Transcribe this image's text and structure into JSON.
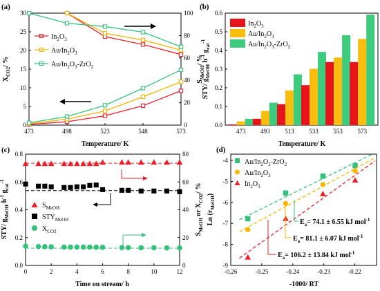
{
  "chart_data": [
    {
      "panel": "(a)",
      "type": "line",
      "xlabel": "Temperature/ K",
      "ylabel_left": "X_CO2/ %",
      "ylabel_right": "S_MeOH/ %",
      "x": [
        473,
        498,
        523,
        548,
        573
      ],
      "xlim": [
        473,
        573
      ],
      "ylim_left": [
        0,
        30
      ],
      "ylim_right": [
        0,
        100
      ],
      "yticks_left": [
        "0",
        "5",
        "10",
        "15",
        "20",
        "25",
        "30"
      ],
      "yticks_right": [
        "0",
        "20",
        "40",
        "60",
        "80",
        "100"
      ],
      "legend": "top-left",
      "series": [
        {
          "name": "In2O3",
          "color": "#e8202a",
          "marker": "square",
          "axis": "left",
          "quantity": "X_CO2",
          "values": [
            0.2,
            0.9,
            2.5,
            5.2,
            9.2
          ]
        },
        {
          "name": "Au/In2O3",
          "color": "#f7b500",
          "marker": "square",
          "axis": "left",
          "quantity": "X_CO2",
          "values": [
            0.4,
            1.6,
            3.8,
            7.6,
            11.6
          ]
        },
        {
          "name": "Au/In2O3-ZrO2",
          "color": "#34c17a",
          "marker": "square",
          "axis": "left",
          "quantity": "X_CO2",
          "values": [
            0.6,
            2.3,
            5.3,
            9.9,
            14.8
          ]
        },
        {
          "name": "In2O3",
          "color": "#e8202a",
          "marker": "square",
          "axis": "right",
          "quantity": "S_MeOH",
          "values": [
            null,
            100,
            79,
            72,
            63
          ]
        },
        {
          "name": "Au/In2O3",
          "color": "#f7b500",
          "marker": "square",
          "axis": "right",
          "quantity": "S_MeOH",
          "values": [
            null,
            100,
            82,
            76,
            67
          ]
        },
        {
          "name": "Au/In2O3-ZrO2",
          "color": "#34c17a",
          "marker": "square",
          "axis": "right",
          "quantity": "S_MeOH",
          "values": [
            100,
            91,
            88,
            83,
            70
          ]
        }
      ]
    },
    {
      "panel": "(b)",
      "type": "bar",
      "xlabel": "Temperature/ K",
      "ylabel": "STY/ g_MeOH h^-1 g_cat^-1",
      "categories": [
        "473",
        "493",
        "513",
        "533",
        "553",
        "573"
      ],
      "ylim": [
        0,
        0.6
      ],
      "yticks": [
        "0.0",
        "0.1",
        "0.2",
        "0.3",
        "0.4",
        "0.5",
        "0.6"
      ],
      "legend": "top-left",
      "series": [
        {
          "name": "In2O3",
          "color": "#e8141c",
          "values": [
            0.004,
            0.034,
            0.112,
            0.214,
            0.338,
            0.338
          ]
        },
        {
          "name": "Au/In2O3",
          "color": "#f9bd0f",
          "values": [
            0.02,
            0.076,
            0.186,
            0.302,
            0.362,
            0.462
          ]
        },
        {
          "name": "Au/In2O3-ZrO2",
          "color": "#3dcc7d",
          "values": [
            0.034,
            0.12,
            0.272,
            0.392,
            0.482,
            0.592
          ]
        }
      ]
    },
    {
      "panel": "(c)",
      "type": "scatter",
      "xlabel": "Time on stream/ h",
      "ylabel_left": "STY/ g_MeOH h^-1 g_cat^-1",
      "ylabel_right": "S_MeOH or X_CO2/ %",
      "xlim": [
        0,
        12
      ],
      "ylim_left": [
        0,
        0.8
      ],
      "ylim_right": [
        0,
        80
      ],
      "xticks": [
        "0",
        "2",
        "4",
        "6",
        "8",
        "10",
        "12"
      ],
      "yticks_left": [
        "0.0",
        "0.2",
        "0.4",
        "0.6",
        "0.8"
      ],
      "yticks_right": [
        "0",
        "20",
        "40",
        "60",
        "80"
      ],
      "legend": "left",
      "series": [
        {
          "name": "S_MeOH",
          "color": "#e8202a",
          "marker": "triangle",
          "axis": "right",
          "x": [
            0,
            1,
            1.5,
            2,
            3,
            3.5,
            4,
            4.5,
            5,
            5.5,
            6,
            7.5,
            8,
            9,
            10,
            11,
            12
          ],
          "y": [
            73,
            73,
            73,
            73,
            73,
            73,
            73,
            73,
            73,
            73,
            74,
            74,
            74,
            74,
            74,
            74,
            74
          ]
        },
        {
          "name": "STY_MeOH",
          "color": "#000000",
          "marker": "square",
          "axis": "left",
          "x": [
            0,
            1,
            1.5,
            2,
            3,
            3.5,
            4,
            4.5,
            5,
            5.5,
            6,
            7.5,
            8,
            9,
            10,
            11,
            12
          ],
          "y": [
            0.585,
            0.57,
            0.57,
            0.565,
            0.56,
            0.56,
            0.565,
            0.565,
            0.575,
            0.578,
            0.545,
            0.54,
            0.54,
            0.535,
            0.535,
            0.535,
            0.53
          ]
        },
        {
          "name": "X_CO2",
          "color": "#34c17a",
          "marker": "circle",
          "axis": "right",
          "x": [
            0,
            1,
            1.5,
            2,
            3,
            3.5,
            4,
            4.5,
            5,
            5.5,
            6,
            7.5,
            8,
            9,
            10,
            11,
            12
          ],
          "y": [
            13.8,
            13.6,
            13.5,
            13.4,
            13.2,
            13.2,
            13.2,
            13.2,
            13.2,
            13.1,
            13,
            12.8,
            12.8,
            12.7,
            12.7,
            12.6,
            12.6
          ]
        }
      ]
    },
    {
      "panel": "(d)",
      "type": "scatter",
      "xlabel": "-1000/ RT",
      "ylabel": "Ln (r_MeOH)",
      "xlim": [
        -0.26,
        -0.213
      ],
      "ylim": [
        -9,
        -3.7
      ],
      "xticks": [
        "-0.26",
        "-0.25",
        "-0.24",
        "-0.23",
        "-0.22"
      ],
      "yticks": [
        "-9",
        "-8",
        "-7",
        "-6",
        "-5",
        "-4"
      ],
      "legend": "top-left",
      "series": [
        {
          "name": "Au/In2O3-ZrO2",
          "color": "#34c17a",
          "marker": "square",
          "x": [
            -0.2545,
            -0.2423,
            -0.2303,
            -0.2199
          ],
          "y": [
            -6.78,
            -5.55,
            -4.75,
            -4.25
          ],
          "Ea": "74.1 ± 6.55 kJ mol^-1"
        },
        {
          "name": "Au/In2O3",
          "color": "#f7b500",
          "marker": "circle",
          "x": [
            -0.2545,
            -0.2423,
            -0.2303,
            -0.2199
          ],
          "y": [
            -7.3,
            -6.05,
            -5.15,
            -4.5
          ],
          "Ea": "81.1 ± 6.07 kJ mol^-1"
        },
        {
          "name": "In2O3",
          "color": "#e8202a",
          "marker": "triangle",
          "x": [
            -0.2545,
            -0.2423,
            -0.2303,
            -0.2199
          ],
          "y": [
            -8.62,
            -6.78,
            -5.6,
            -4.95
          ],
          "Ea": "106.2 ± 13.84 kJ mol^-1"
        }
      ]
    }
  ],
  "text": {
    "a_panel": "(a)",
    "a_xlabel": "Temperature/ K",
    "a_leg1": "In2O3",
    "a_leg2": "Au/In2O3",
    "a_leg3": "Au/In2O3-ZrO2",
    "b_panel": "(b)",
    "b_xlabel": "Temperature/ K",
    "b_leg1": "In2O3",
    "b_leg2": "Au/In2O3",
    "b_leg3": "Au/In2O3-ZrO2",
    "c_panel": "(c)",
    "c_xlabel": "Time on stream/ h",
    "d_panel": "(d)",
    "d_xlabel": "-1000/ RT",
    "d_leg1": "Au/In2O3-ZrO2",
    "d_leg2": "Au/In2O3",
    "d_leg3": "In2O3"
  }
}
